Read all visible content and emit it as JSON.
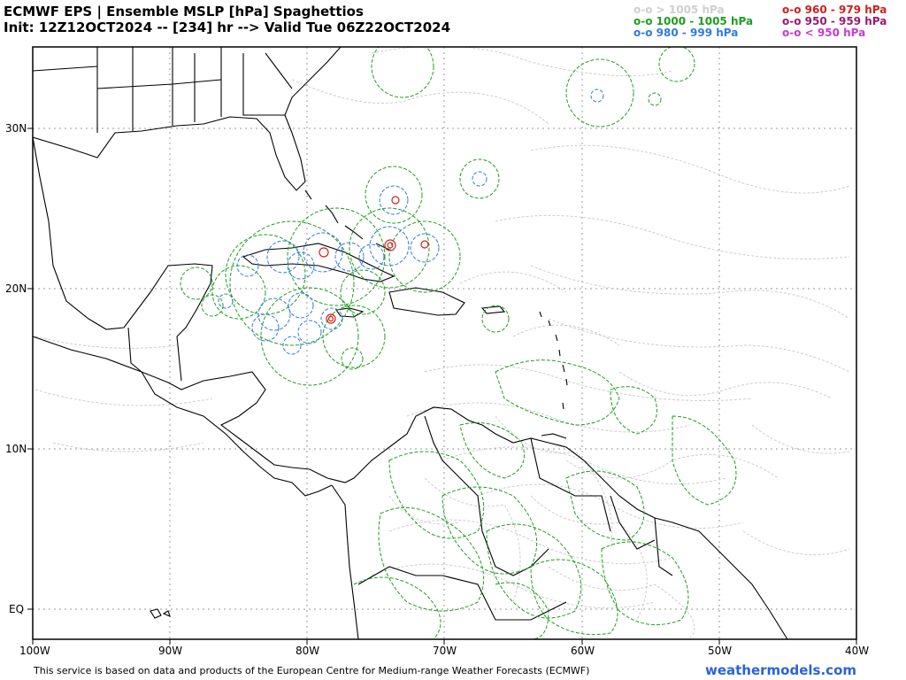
{
  "header": {
    "line1": "ECMWF EPS | Ensemble MSLP [hPa] Spaghettios",
    "line2": "Init: 12Z12OCT2024 -- [234] hr --> Valid Tue 06Z22OCT2024"
  },
  "legend": [
    {
      "label": "o-o > 1005 hPa",
      "color": "#cfcfcf"
    },
    {
      "label": "o-o 1000 - 1005 hPa",
      "color": "#1f9e1f"
    },
    {
      "label": "o-o 980 - 999 hPa",
      "color": "#2f7bdc"
    },
    {
      "label": "o-o 960 - 979 hPa",
      "color": "#d11f1f"
    },
    {
      "label": "o-o 950 - 959 hPa",
      "color": "#9b1a6d"
    },
    {
      "label": "o-o < 950 hPa",
      "color": "#c43ccf"
    }
  ],
  "axes": {
    "lon_labels": [
      "100W",
      "90W",
      "80W",
      "70W",
      "60W",
      "50W",
      "40W"
    ],
    "lat_labels": [
      "30N",
      "20N",
      "10N",
      "EQ"
    ]
  },
  "footer": {
    "credit": "This service is based on data and products of the European Centre for Medium-range Weather Forecasts (ECMWF)",
    "brand": "weathermodels.com"
  }
}
